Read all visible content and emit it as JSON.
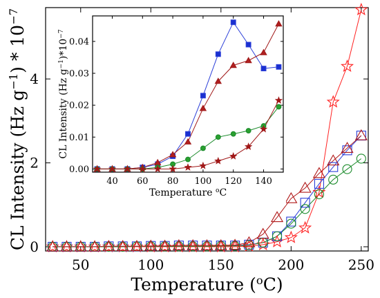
{
  "chart_data": [
    {
      "id": "main",
      "type": "line",
      "xlabel": "Temperature (",
      "xlabel_sup": "o",
      "xlabel_end": "C)",
      "ylabel_base": "CL Intensity (Hz g",
      "ylabel_sup": "−1",
      "ylabel_end": ") * 10",
      "ylabel_exp": "−7",
      "xlim": [
        25,
        255
      ],
      "ylim": [
        -0.1,
        5.7
      ],
      "xticks": [
        50,
        100,
        150,
        200,
        250
      ],
      "yticks": [
        0,
        2,
        4
      ],
      "x": [
        30,
        40,
        50,
        60,
        70,
        80,
        90,
        100,
        110,
        120,
        130,
        140,
        150,
        160,
        170,
        180,
        190,
        200,
        210,
        220,
        230,
        240,
        250
      ],
      "series": [
        {
          "marker": "star",
          "color": "#ff2020",
          "fill": "none",
          "values": [
            0.0,
            0.0,
            0.0,
            0.0,
            0.0,
            0.0,
            0.0,
            0.0,
            0.0,
            0.0,
            0.0,
            0.0,
            0.0,
            0.0,
            0.02,
            0.05,
            0.12,
            0.22,
            0.45,
            1.3,
            3.45,
            4.3,
            5.65
          ]
        },
        {
          "marker": "square",
          "color": "#2a3ed8",
          "fill": "none",
          "values": [
            0.0,
            0.0,
            0.0,
            0.0,
            0.01,
            0.01,
            0.01,
            0.02,
            0.02,
            0.03,
            0.03,
            0.03,
            0.03,
            0.03,
            0.05,
            0.1,
            0.25,
            0.6,
            1.05,
            1.5,
            1.9,
            2.3,
            2.65
          ]
        },
        {
          "marker": "circle",
          "color": "#1a8a2a",
          "fill": "none",
          "values": [
            0.0,
            0.0,
            0.0,
            0.0,
            0.0,
            0.0,
            0.01,
            0.01,
            0.01,
            0.01,
            0.01,
            0.01,
            0.02,
            0.02,
            0.04,
            0.1,
            0.25,
            0.55,
            0.9,
            1.25,
            1.6,
            1.85,
            2.1
          ]
        },
        {
          "marker": "triangle",
          "color": "#b01818",
          "fill": "none",
          "values": [
            0.0,
            0.0,
            0.0,
            0.0,
            0.01,
            0.01,
            0.01,
            0.02,
            0.02,
            0.03,
            0.03,
            0.03,
            0.03,
            0.04,
            0.1,
            0.3,
            0.7,
            1.15,
            1.4,
            1.75,
            2.05,
            2.35,
            2.65
          ]
        }
      ]
    },
    {
      "id": "inset",
      "type": "line",
      "xlabel": "Temperature ",
      "xlabel_sup": "o",
      "xlabel_end": "C",
      "ylabel_base": "CL Intensity (Hz g",
      "ylabel_sup": "−1",
      "ylabel_end": ")*10",
      "ylabel_exp": "−7",
      "xlim": [
        27,
        153
      ],
      "ylim": [
        -0.001,
        0.048
      ],
      "xticks": [
        40,
        60,
        80,
        100,
        120,
        140
      ],
      "yticks": [
        "0.00",
        "0.01",
        "0.02",
        "0.03",
        "0.04"
      ],
      "x": [
        30,
        40,
        50,
        60,
        70,
        80,
        90,
        100,
        110,
        120,
        130,
        140,
        150
      ],
      "series": [
        {
          "marker": "square",
          "color": "#2a3ed8",
          "fill": "#1a30d0",
          "values": [
            0.0,
            0.0,
            0.0,
            0.0005,
            0.0015,
            0.004,
            0.011,
            0.023,
            0.036,
            0.046,
            0.039,
            0.0315,
            0.032
          ]
        },
        {
          "marker": "triangle",
          "color": "#a01818",
          "fill": "#b02020",
          "values": [
            0.0,
            0.0,
            0.0,
            0.0005,
            0.002,
            0.0045,
            0.0085,
            0.019,
            0.0275,
            0.0325,
            0.034,
            0.0365,
            0.0455
          ]
        },
        {
          "marker": "circle",
          "color": "#1a8a2a",
          "fill": "#2aa030",
          "values": [
            0.0,
            0.0,
            0.0,
            0.0,
            0.0005,
            0.0015,
            0.003,
            0.0065,
            0.01,
            0.011,
            0.012,
            0.0135,
            0.0195
          ]
        },
        {
          "marker": "star",
          "color": "#a01818",
          "fill": "#a01818",
          "values": [
            0.0,
            0.0,
            0.0,
            0.0,
            0.0,
            0.0,
            0.0005,
            0.001,
            0.0025,
            0.004,
            0.007,
            0.0125,
            0.0215
          ]
        }
      ]
    }
  ]
}
